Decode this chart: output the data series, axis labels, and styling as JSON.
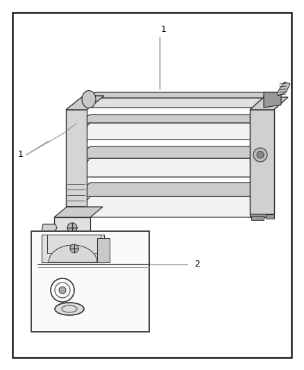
{
  "fig_width": 4.38,
  "fig_height": 5.33,
  "dpi": 100,
  "bg_color": "#ffffff",
  "border_color": "#1a1a1a",
  "border_lw": 1.8,
  "label1_top_text": "1",
  "label1_callout_text": "1",
  "label2_text": "2",
  "line_color": "#444444",
  "light_gray": "#e8e8e8",
  "mid_gray": "#cccccc",
  "dark_gray": "#999999",
  "darker_gray": "#666666",
  "very_light": "#f2f2f2",
  "edge_color": "#333333"
}
